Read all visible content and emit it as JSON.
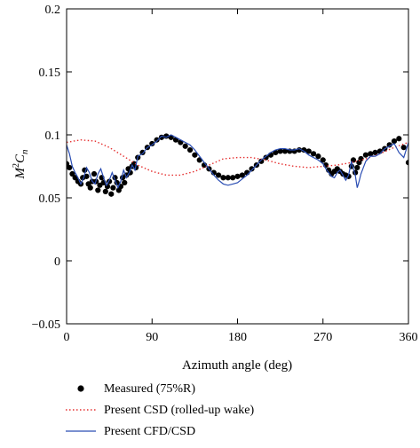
{
  "chart_data": {
    "type": "line",
    "xlabel": "Azimuth angle (deg)",
    "ylabel": "M²Cₙ",
    "ylabel_base": "M",
    "ylabel_sup": "2",
    "ylabel_c": "C",
    "ylabel_sub": "n",
    "xlim": [
      0,
      360
    ],
    "ylim": [
      -0.05,
      0.2
    ],
    "xticks": [
      0,
      90,
      180,
      270,
      360
    ],
    "xtick_labels": [
      "0",
      "90",
      "180",
      "270",
      "360"
    ],
    "yticks": [
      -0.05,
      0,
      0.05,
      0.1,
      0.15,
      0.2
    ],
    "ytick_labels": [
      "−0.05",
      "0",
      "0.05",
      "0.1",
      "0.15",
      "0.2"
    ],
    "grid": false,
    "legend_position": "below",
    "series": [
      {
        "name": "Measured (75%R)",
        "style": "markers",
        "color": "#000000",
        "x": [
          0,
          3,
          6,
          9,
          12,
          15,
          17,
          19,
          21,
          23,
          25,
          27,
          29,
          31,
          33,
          35,
          37,
          39,
          41,
          43,
          45,
          47,
          49,
          51,
          53,
          55,
          57,
          59,
          61,
          63,
          65,
          67,
          69,
          71,
          73,
          75,
          80,
          85,
          90,
          95,
          100,
          105,
          110,
          115,
          120,
          125,
          130,
          135,
          140,
          145,
          150,
          155,
          160,
          165,
          170,
          175,
          180,
          185,
          190,
          195,
          200,
          205,
          210,
          215,
          220,
          225,
          230,
          235,
          240,
          245,
          250,
          255,
          260,
          265,
          270,
          273,
          276,
          279,
          282,
          285,
          288,
          291,
          294,
          297,
          300,
          302,
          304,
          306,
          308,
          310,
          315,
          320,
          325,
          330,
          335,
          340,
          345,
          350,
          355,
          360
        ],
        "y": [
          0.077,
          0.074,
          0.069,
          0.066,
          0.063,
          0.061,
          0.066,
          0.072,
          0.067,
          0.061,
          0.058,
          0.063,
          0.069,
          0.063,
          0.056,
          0.06,
          0.066,
          0.062,
          0.055,
          0.059,
          0.063,
          0.053,
          0.058,
          0.066,
          0.062,
          0.056,
          0.059,
          0.066,
          0.062,
          0.068,
          0.073,
          0.07,
          0.075,
          0.077,
          0.074,
          0.082,
          0.086,
          0.09,
          0.093,
          0.096,
          0.098,
          0.099,
          0.098,
          0.096,
          0.094,
          0.091,
          0.088,
          0.084,
          0.08,
          0.076,
          0.073,
          0.07,
          0.068,
          0.066,
          0.066,
          0.066,
          0.067,
          0.068,
          0.07,
          0.073,
          0.076,
          0.079,
          0.082,
          0.084,
          0.086,
          0.087,
          0.087,
          0.087,
          0.087,
          0.088,
          0.088,
          0.087,
          0.085,
          0.083,
          0.08,
          0.076,
          0.072,
          0.069,
          0.071,
          0.073,
          0.071,
          0.069,
          0.068,
          0.067,
          0.075,
          0.08,
          0.07,
          0.074,
          0.078,
          0.081,
          0.084,
          0.085,
          0.086,
          0.087,
          0.089,
          0.092,
          0.095,
          0.097,
          0.09,
          0.078
        ]
      },
      {
        "name": "Present CSD (rolled-up wake)",
        "style": "dotted",
        "color": "#e53030",
        "x": [
          0,
          15,
          30,
          45,
          60,
          75,
          90,
          105,
          120,
          135,
          150,
          165,
          180,
          195,
          210,
          225,
          240,
          255,
          270,
          285,
          300,
          315,
          330,
          345,
          360
        ],
        "y": [
          0.094,
          0.096,
          0.095,
          0.09,
          0.083,
          0.076,
          0.071,
          0.068,
          0.068,
          0.071,
          0.076,
          0.081,
          0.082,
          0.082,
          0.08,
          0.077,
          0.075,
          0.074,
          0.075,
          0.076,
          0.078,
          0.081,
          0.085,
          0.09,
          0.094
        ]
      },
      {
        "name": "Present CFD/CSD",
        "style": "solid",
        "color": "#2a4db3",
        "x": [
          0,
          3,
          6,
          9,
          12,
          15,
          18,
          21,
          24,
          27,
          30,
          33,
          36,
          39,
          42,
          45,
          48,
          51,
          54,
          57,
          60,
          63,
          66,
          69,
          72,
          75,
          80,
          85,
          90,
          95,
          100,
          105,
          110,
          115,
          120,
          125,
          130,
          135,
          140,
          145,
          150,
          155,
          160,
          165,
          170,
          175,
          180,
          185,
          190,
          195,
          200,
          205,
          210,
          215,
          220,
          225,
          230,
          235,
          240,
          245,
          250,
          255,
          260,
          265,
          270,
          273,
          276,
          279,
          282,
          285,
          288,
          291,
          294,
          297,
          300,
          302,
          304,
          306,
          308,
          310,
          315,
          320,
          325,
          330,
          335,
          340,
          345,
          350,
          355,
          360
        ],
        "y": [
          0.092,
          0.085,
          0.075,
          0.07,
          0.066,
          0.061,
          0.066,
          0.074,
          0.07,
          0.063,
          0.061,
          0.069,
          0.073,
          0.066,
          0.06,
          0.064,
          0.07,
          0.064,
          0.058,
          0.063,
          0.072,
          0.066,
          0.07,
          0.076,
          0.072,
          0.083,
          0.085,
          0.09,
          0.092,
          0.095,
          0.099,
          0.098,
          0.1,
          0.098,
          0.096,
          0.094,
          0.092,
          0.088,
          0.083,
          0.078,
          0.073,
          0.068,
          0.064,
          0.061,
          0.06,
          0.061,
          0.062,
          0.065,
          0.068,
          0.072,
          0.076,
          0.08,
          0.083,
          0.086,
          0.088,
          0.089,
          0.089,
          0.088,
          0.088,
          0.089,
          0.087,
          0.084,
          0.082,
          0.08,
          0.077,
          0.073,
          0.07,
          0.067,
          0.066,
          0.07,
          0.072,
          0.068,
          0.064,
          0.068,
          0.079,
          0.073,
          0.068,
          0.058,
          0.063,
          0.069,
          0.079,
          0.083,
          0.083,
          0.085,
          0.089,
          0.091,
          0.093,
          0.086,
          0.082,
          0.094
        ]
      }
    ]
  }
}
